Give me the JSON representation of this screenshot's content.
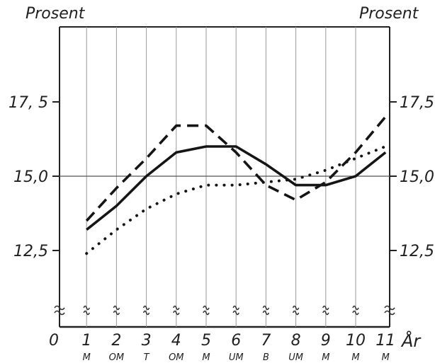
{
  "chart_data": {
    "type": "line",
    "ylabel_left": "Prosent",
    "ylabel_right": "Prosent",
    "xlabel": "År",
    "xlim": [
      0,
      11
    ],
    "ylim": [
      10.7,
      19.5
    ],
    "x_ticks": [
      "0",
      "1",
      "2",
      "3",
      "4",
      "5",
      "6",
      "7",
      "8",
      "9",
      "10",
      "11"
    ],
    "x_sublabels": [
      "",
      "M",
      "OM",
      "T",
      "OM",
      "M",
      "UM",
      "B",
      "UM",
      "M",
      "M",
      "M"
    ],
    "y_ticks_left": [
      {
        "value": 12.5,
        "label": "12,5"
      },
      {
        "value": 15.0,
        "label": "15,0"
      },
      {
        "value": 17.5,
        "label": "17, 5"
      }
    ],
    "y_ticks_right": [
      {
        "value": 12.5,
        "label": "12,5"
      },
      {
        "value": 15.0,
        "label": "15,0"
      },
      {
        "value": 17.5,
        "label": "17,5"
      }
    ],
    "grid": {
      "vertical": true,
      "horizontal_at": [
        15.0
      ]
    },
    "axis_break": true,
    "series": [
      {
        "style": "solid",
        "x": [
          1,
          2,
          3,
          4,
          5,
          6,
          7,
          8,
          9,
          10,
          11
        ],
        "values": [
          13.2,
          14.0,
          15.0,
          15.8,
          16.0,
          16.0,
          15.4,
          14.7,
          14.7,
          15.0,
          15.8
        ]
      },
      {
        "style": "dashed",
        "x": [
          1,
          2,
          3,
          4,
          5,
          6,
          7,
          8,
          9,
          10,
          11
        ],
        "values": [
          13.5,
          14.6,
          15.6,
          16.7,
          16.7,
          15.8,
          14.7,
          14.2,
          14.8,
          15.8,
          17.0
        ]
      },
      {
        "style": "dotted",
        "x": [
          1,
          2,
          3,
          4,
          5,
          6,
          7,
          8,
          9,
          10,
          11
        ],
        "values": [
          12.4,
          13.2,
          13.9,
          14.4,
          14.7,
          14.7,
          14.8,
          14.9,
          15.2,
          15.6,
          16.0
        ]
      }
    ]
  }
}
